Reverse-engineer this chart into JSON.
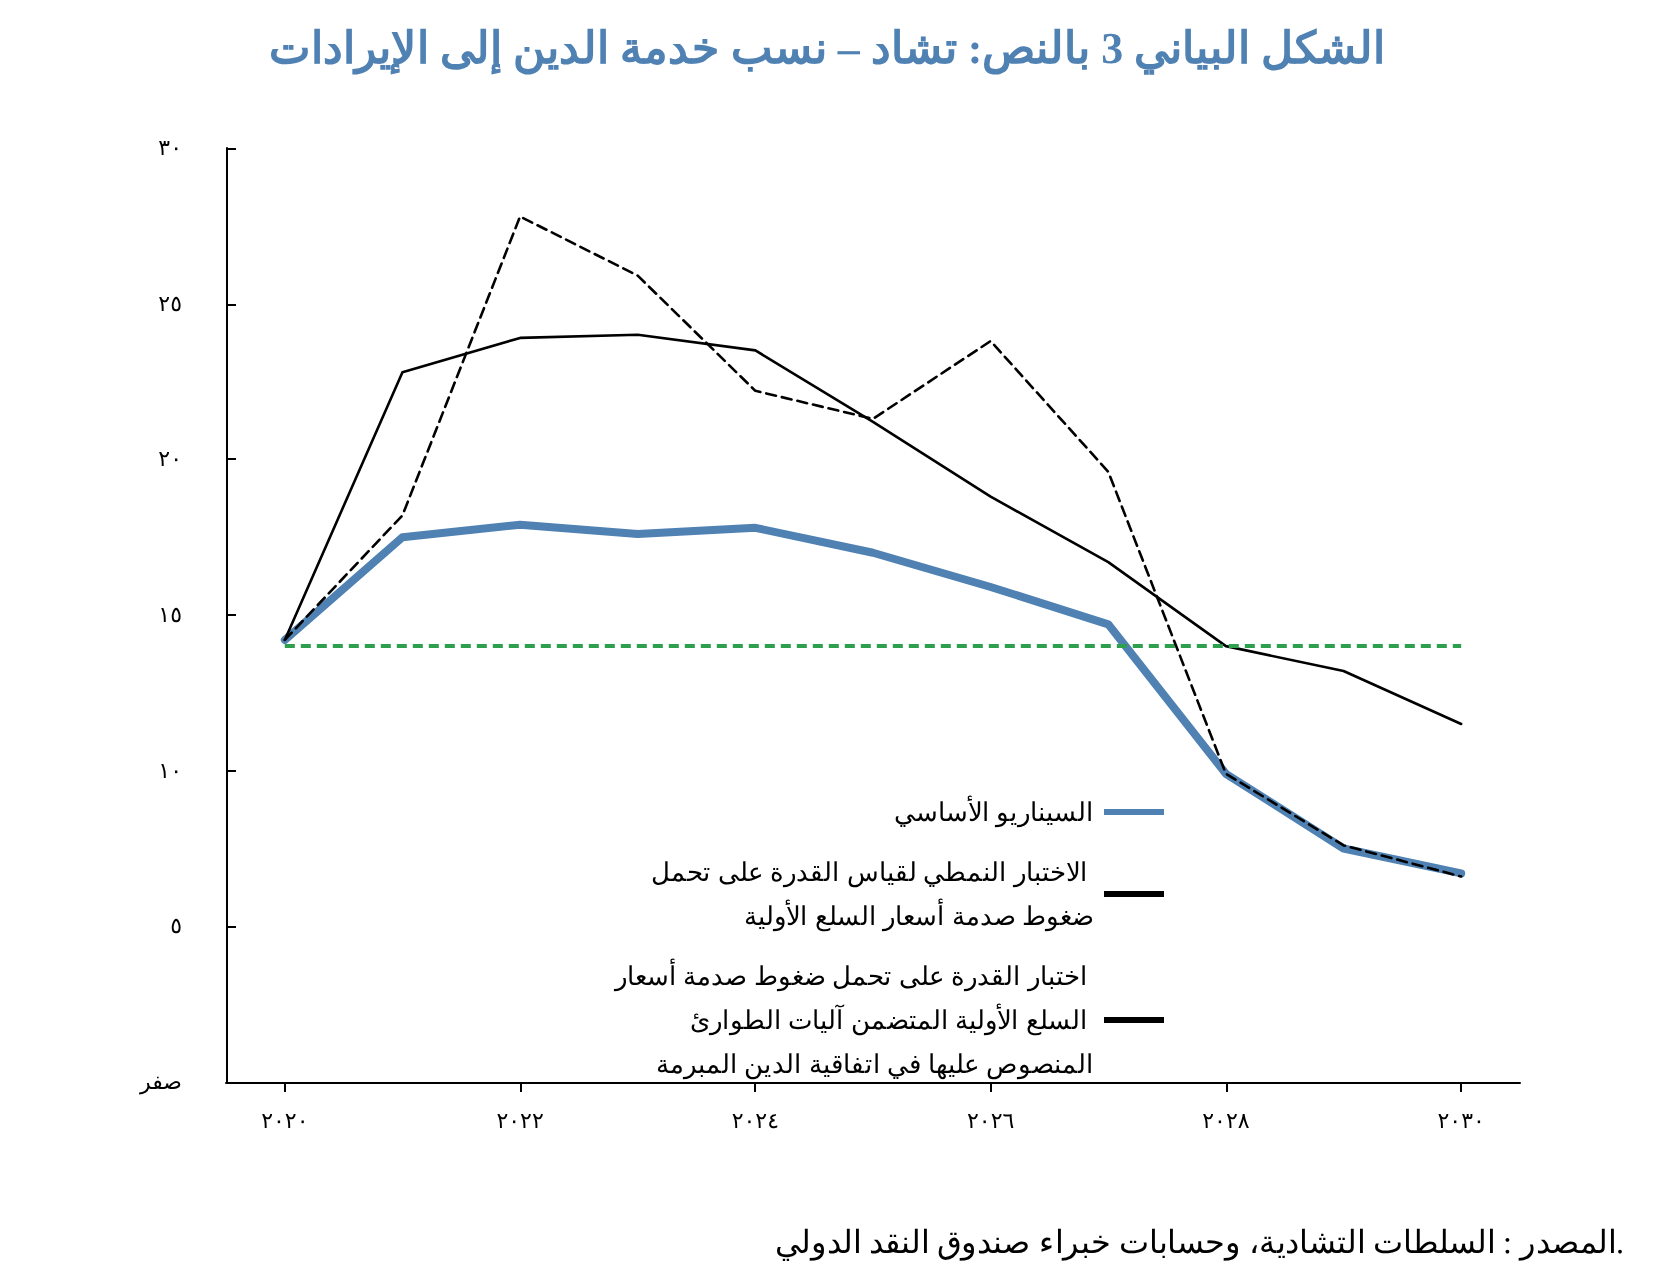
{
  "chart_data": {
    "type": "line",
    "title": "الشكل البياني 3 بالنص: تشاد – نسب خدمة الدين إلى الإيرادات",
    "x": [
      2020,
      2021,
      2022,
      2023,
      2024,
      2025,
      2026,
      2027,
      2028,
      2029,
      2030
    ],
    "series": [
      {
        "name": "السيناريو الأساسي",
        "color": "#4f81b3",
        "line_style": "solid",
        "values": [
          14.2,
          17.5,
          17.9,
          17.6,
          17.8,
          17.0,
          15.9,
          14.7,
          9.9,
          7.5,
          6.7
        ]
      },
      {
        "name": "الاختبار النمطي لقياس القدرة على تحمل ضغوط صدمة أسعار السلع الأولية",
        "color": "#000000",
        "line_style": "solid",
        "values": [
          14.2,
          22.8,
          23.9,
          24.0,
          23.5,
          21.2,
          18.8,
          16.7,
          14.0,
          13.2,
          11.5
        ]
      },
      {
        "name": "اختبار القدرة على تحمل ضغوط صدمة أسعار السلع الأولية المتضمن آليات الطوارئ المنصوص عليها في اتفاقية الدين المبرمة",
        "color": "#000000",
        "line_style": "dashed",
        "values": [
          14.2,
          18.2,
          27.8,
          25.9,
          22.2,
          21.3,
          23.8,
          19.6,
          9.9,
          7.6,
          6.6
        ]
      }
    ],
    "ref_lines": [
      {
        "axis": "y",
        "value": 14.0,
        "label": null,
        "color": "#2e9e4f",
        "line_style": "dashed"
      }
    ],
    "xlim": [
      2019.5,
      2030.5
    ],
    "xticks": [
      {
        "value": 2020,
        "label": "٢٠٢٠"
      },
      {
        "value": 2022,
        "label": "٢٠٢٢"
      },
      {
        "value": 2024,
        "label": "٢٠٢٤"
      },
      {
        "value": 2026,
        "label": "٢٠٢٦"
      },
      {
        "value": 2028,
        "label": "٢٠٢٨"
      },
      {
        "value": 2030,
        "label": "٢٠٣٠"
      }
    ],
    "ylim": [
      0,
      30
    ],
    "yticks": [
      {
        "value": 0,
        "label": "صفر"
      },
      {
        "value": 5,
        "label": "٥"
      },
      {
        "value": 10,
        "label": "١٠"
      },
      {
        "value": 15,
        "label": "١٥"
      },
      {
        "value": 20,
        "label": "٢٠"
      },
      {
        "value": 25,
        "label": "٢٥"
      },
      {
        "value": 30,
        "label": "٣٠"
      }
    ],
    "annotations": [
      "المصدر : السلطات التشادية، وحسابات خبراء صندوق النقد الدولي."
    ],
    "grid": false,
    "legend": "bottom",
    "marker": "none"
  }
}
